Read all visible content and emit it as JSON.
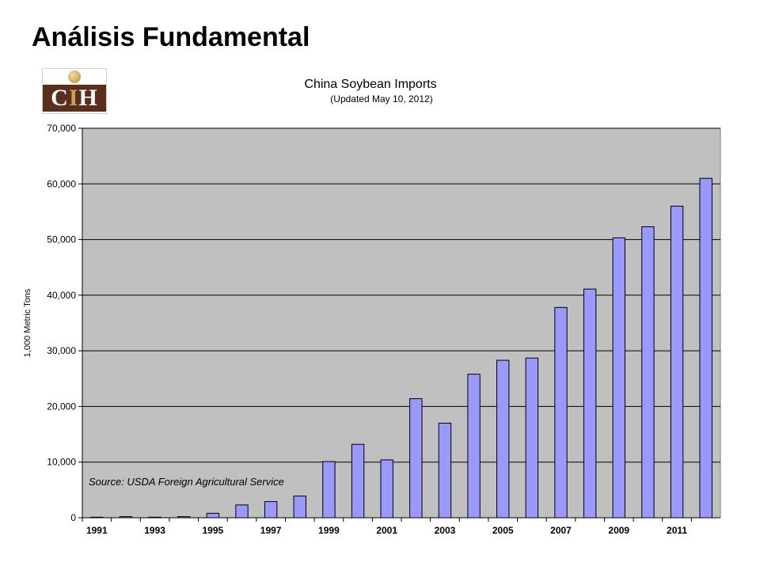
{
  "slide": {
    "title": "Análisis Fundamental"
  },
  "logo": {
    "text": "CIH"
  },
  "colors": {
    "plot_bg": "#c0c0c0",
    "bar_fill": "#9999ff",
    "bar_stroke": "#000000",
    "grid": "#000000"
  },
  "chart_data": {
    "type": "bar",
    "title": "China Soybean Imports",
    "subtitle": "(Updated May 10, 2012)",
    "xlabel": "",
    "ylabel": "1,000 Metric Tons",
    "annotation": "Source: USDA Foreign Agricultural Service",
    "ylim": [
      0,
      70000
    ],
    "yticks": [
      0,
      10000,
      20000,
      30000,
      40000,
      50000,
      60000,
      70000
    ],
    "ytick_labels": [
      "0",
      "10,000",
      "20,000",
      "30,000",
      "40,000",
      "50,000",
      "60,000",
      "70,000"
    ],
    "categories": [
      "1991",
      "1992",
      "1993",
      "1994",
      "1995",
      "1996",
      "1997",
      "1998",
      "1999",
      "2000",
      "2001",
      "2002",
      "2003",
      "2004",
      "2005",
      "2006",
      "2007",
      "2008",
      "2009",
      "2010",
      "2011",
      "2012"
    ],
    "xtick_labels": [
      "1991",
      "1993",
      "1995",
      "1997",
      "1999",
      "2001",
      "2003",
      "2005",
      "2007",
      "2009",
      "2011"
    ],
    "values": [
      100,
      200,
      100,
      200,
      800,
      2300,
      2900,
      3900,
      10100,
      13200,
      10400,
      21400,
      17000,
      25800,
      28300,
      28700,
      37800,
      41100,
      50300,
      52300,
      56000,
      61000
    ],
    "grid": true,
    "legend": "none"
  }
}
